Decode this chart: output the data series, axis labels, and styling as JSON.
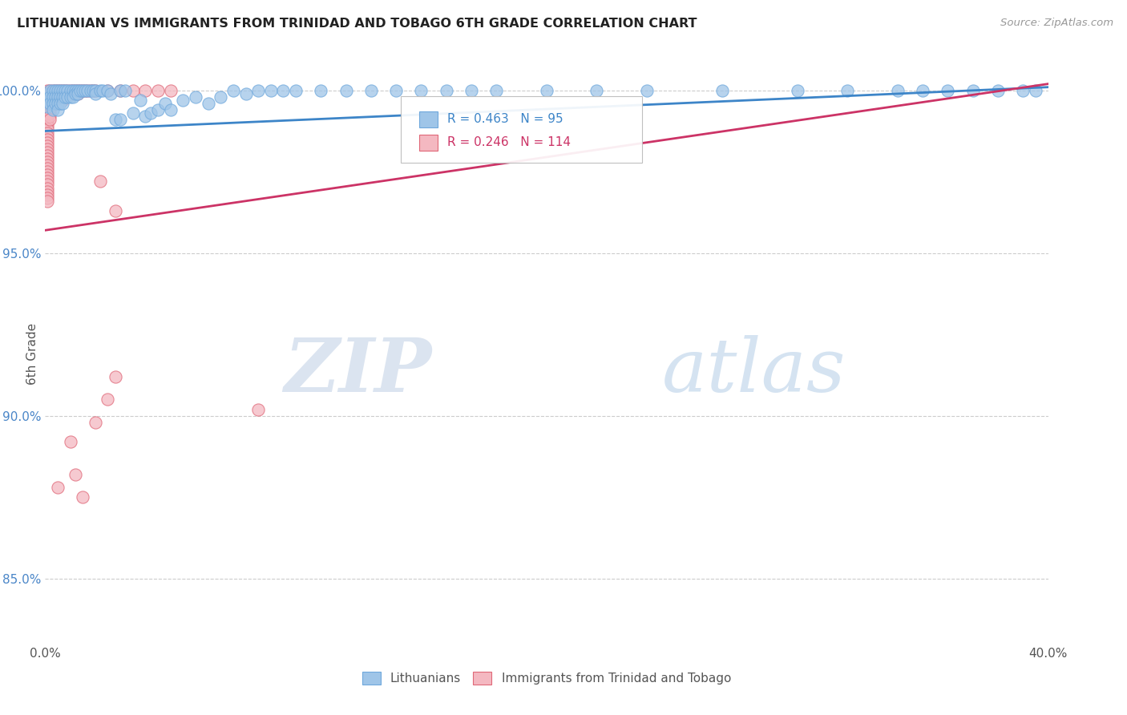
{
  "title": "LITHUANIAN VS IMMIGRANTS FROM TRINIDAD AND TOBAGO 6TH GRADE CORRELATION CHART",
  "source_text": "Source: ZipAtlas.com",
  "ylabel": "6th Grade",
  "xlim": [
    0.0,
    0.4
  ],
  "ylim": [
    0.83,
    1.008
  ],
  "blue_R": 0.463,
  "blue_N": 95,
  "pink_R": 0.246,
  "pink_N": 114,
  "legend_label_blue": "Lithuanians",
  "legend_label_pink": "Immigrants from Trinidad and Tobago",
  "watermark_zip": "ZIP",
  "watermark_atlas": "atlas",
  "background_color": "#ffffff",
  "grid_color": "#cccccc",
  "blue_color": "#9fc5e8",
  "blue_edge_color": "#6fa8dc",
  "blue_line_color": "#3d85c8",
  "pink_color": "#f4b8c1",
  "pink_edge_color": "#e06878",
  "pink_line_color": "#cc3366",
  "tick_color": "#4a86c8",
  "blue_line_y0": 0.9875,
  "blue_line_y1": 1.001,
  "pink_line_y0": 0.957,
  "pink_line_y1": 1.002,
  "blue_scatter": [
    [
      0.001,
      0.999
    ],
    [
      0.001,
      0.997
    ],
    [
      0.001,
      0.995
    ],
    [
      0.002,
      1.0
    ],
    [
      0.002,
      0.998
    ],
    [
      0.002,
      0.996
    ],
    [
      0.003,
      1.0
    ],
    [
      0.003,
      0.998
    ],
    [
      0.003,
      0.996
    ],
    [
      0.003,
      0.994
    ],
    [
      0.004,
      1.0
    ],
    [
      0.004,
      0.998
    ],
    [
      0.004,
      0.996
    ],
    [
      0.005,
      1.0
    ],
    [
      0.005,
      0.998
    ],
    [
      0.005,
      0.996
    ],
    [
      0.005,
      0.994
    ],
    [
      0.006,
      1.0
    ],
    [
      0.006,
      0.998
    ],
    [
      0.006,
      0.996
    ],
    [
      0.007,
      1.0
    ],
    [
      0.007,
      0.998
    ],
    [
      0.007,
      0.996
    ],
    [
      0.008,
      1.0
    ],
    [
      0.008,
      0.998
    ],
    [
      0.009,
      1.0
    ],
    [
      0.009,
      0.998
    ],
    [
      0.01,
      1.0
    ],
    [
      0.01,
      0.998
    ],
    [
      0.011,
      1.0
    ],
    [
      0.011,
      0.998
    ],
    [
      0.012,
      1.0
    ],
    [
      0.012,
      0.999
    ],
    [
      0.013,
      1.0
    ],
    [
      0.013,
      0.999
    ],
    [
      0.014,
      1.0
    ],
    [
      0.015,
      1.0
    ],
    [
      0.016,
      1.0
    ],
    [
      0.017,
      1.0
    ],
    [
      0.018,
      1.0
    ],
    [
      0.019,
      1.0
    ],
    [
      0.02,
      1.0
    ],
    [
      0.02,
      0.999
    ],
    [
      0.022,
      1.0
    ],
    [
      0.023,
      1.0
    ],
    [
      0.025,
      1.0
    ],
    [
      0.026,
      0.999
    ],
    [
      0.028,
      0.991
    ],
    [
      0.03,
      0.991
    ],
    [
      0.03,
      1.0
    ],
    [
      0.032,
      1.0
    ],
    [
      0.035,
      0.993
    ],
    [
      0.038,
      0.997
    ],
    [
      0.04,
      0.992
    ],
    [
      0.042,
      0.993
    ],
    [
      0.045,
      0.994
    ],
    [
      0.048,
      0.996
    ],
    [
      0.05,
      0.994
    ],
    [
      0.055,
      0.997
    ],
    [
      0.06,
      0.998
    ],
    [
      0.065,
      0.996
    ],
    [
      0.07,
      0.998
    ],
    [
      0.075,
      1.0
    ],
    [
      0.08,
      0.999
    ],
    [
      0.085,
      1.0
    ],
    [
      0.09,
      1.0
    ],
    [
      0.095,
      1.0
    ],
    [
      0.1,
      1.0
    ],
    [
      0.11,
      1.0
    ],
    [
      0.12,
      1.0
    ],
    [
      0.13,
      1.0
    ],
    [
      0.14,
      1.0
    ],
    [
      0.15,
      1.0
    ],
    [
      0.16,
      1.0
    ],
    [
      0.17,
      1.0
    ],
    [
      0.18,
      1.0
    ],
    [
      0.2,
      1.0
    ],
    [
      0.22,
      1.0
    ],
    [
      0.24,
      1.0
    ],
    [
      0.27,
      1.0
    ],
    [
      0.3,
      1.0
    ],
    [
      0.32,
      1.0
    ],
    [
      0.34,
      1.0
    ],
    [
      0.35,
      1.0
    ],
    [
      0.36,
      1.0
    ],
    [
      0.37,
      1.0
    ],
    [
      0.38,
      1.0
    ],
    [
      0.39,
      1.0
    ],
    [
      0.395,
      1.0
    ]
  ],
  "pink_scatter": [
    [
      0.001,
      1.0
    ],
    [
      0.001,
      0.999
    ],
    [
      0.001,
      0.998
    ],
    [
      0.001,
      0.997
    ],
    [
      0.001,
      0.996
    ],
    [
      0.001,
      0.995
    ],
    [
      0.001,
      0.994
    ],
    [
      0.001,
      0.993
    ],
    [
      0.001,
      0.992
    ],
    [
      0.001,
      0.991
    ],
    [
      0.001,
      0.99
    ],
    [
      0.001,
      0.989
    ],
    [
      0.001,
      0.988
    ],
    [
      0.001,
      0.987
    ],
    [
      0.001,
      0.986
    ],
    [
      0.001,
      0.985
    ],
    [
      0.001,
      0.984
    ],
    [
      0.001,
      0.983
    ],
    [
      0.001,
      0.982
    ],
    [
      0.001,
      0.981
    ],
    [
      0.001,
      0.98
    ],
    [
      0.001,
      0.979
    ],
    [
      0.001,
      0.978
    ],
    [
      0.001,
      0.977
    ],
    [
      0.001,
      0.976
    ],
    [
      0.001,
      0.975
    ],
    [
      0.001,
      0.974
    ],
    [
      0.001,
      0.973
    ],
    [
      0.001,
      0.972
    ],
    [
      0.001,
      0.971
    ],
    [
      0.001,
      0.97
    ],
    [
      0.001,
      0.969
    ],
    [
      0.001,
      0.968
    ],
    [
      0.001,
      0.967
    ],
    [
      0.001,
      0.966
    ],
    [
      0.002,
      1.0
    ],
    [
      0.002,
      0.999
    ],
    [
      0.002,
      0.998
    ],
    [
      0.002,
      0.997
    ],
    [
      0.002,
      0.996
    ],
    [
      0.002,
      0.995
    ],
    [
      0.002,
      0.994
    ],
    [
      0.002,
      0.993
    ],
    [
      0.002,
      0.992
    ],
    [
      0.002,
      0.991
    ],
    [
      0.003,
      1.0
    ],
    [
      0.003,
      0.999
    ],
    [
      0.003,
      0.998
    ],
    [
      0.003,
      0.997
    ],
    [
      0.003,
      0.996
    ],
    [
      0.004,
      1.0
    ],
    [
      0.004,
      0.999
    ],
    [
      0.004,
      0.998
    ],
    [
      0.004,
      0.997
    ],
    [
      0.004,
      0.996
    ],
    [
      0.005,
      1.0
    ],
    [
      0.005,
      0.999
    ],
    [
      0.005,
      0.998
    ],
    [
      0.005,
      0.997
    ],
    [
      0.005,
      0.996
    ],
    [
      0.006,
      1.0
    ],
    [
      0.006,
      0.999
    ],
    [
      0.006,
      0.998
    ],
    [
      0.006,
      0.997
    ],
    [
      0.007,
      1.0
    ],
    [
      0.007,
      0.999
    ],
    [
      0.007,
      0.998
    ],
    [
      0.007,
      0.997
    ],
    [
      0.008,
      1.0
    ],
    [
      0.008,
      0.999
    ],
    [
      0.008,
      0.998
    ],
    [
      0.009,
      1.0
    ],
    [
      0.009,
      0.999
    ],
    [
      0.01,
      1.0
    ],
    [
      0.01,
      0.999
    ],
    [
      0.011,
      1.0
    ],
    [
      0.011,
      0.999
    ],
    [
      0.012,
      1.0
    ],
    [
      0.013,
      1.0
    ],
    [
      0.013,
      0.999
    ],
    [
      0.014,
      1.0
    ],
    [
      0.015,
      1.0
    ],
    [
      0.016,
      1.0
    ],
    [
      0.017,
      1.0
    ],
    [
      0.018,
      1.0
    ],
    [
      0.019,
      1.0
    ],
    [
      0.02,
      1.0
    ],
    [
      0.022,
      0.972
    ],
    [
      0.025,
      1.0
    ],
    [
      0.028,
      0.963
    ],
    [
      0.03,
      1.0
    ],
    [
      0.035,
      1.0
    ],
    [
      0.04,
      1.0
    ],
    [
      0.045,
      1.0
    ],
    [
      0.05,
      1.0
    ],
    [
      0.005,
      0.878
    ],
    [
      0.01,
      0.892
    ],
    [
      0.012,
      0.882
    ],
    [
      0.015,
      0.875
    ],
    [
      0.02,
      0.898
    ],
    [
      0.025,
      0.905
    ],
    [
      0.028,
      0.912
    ],
    [
      0.085,
      0.902
    ]
  ]
}
